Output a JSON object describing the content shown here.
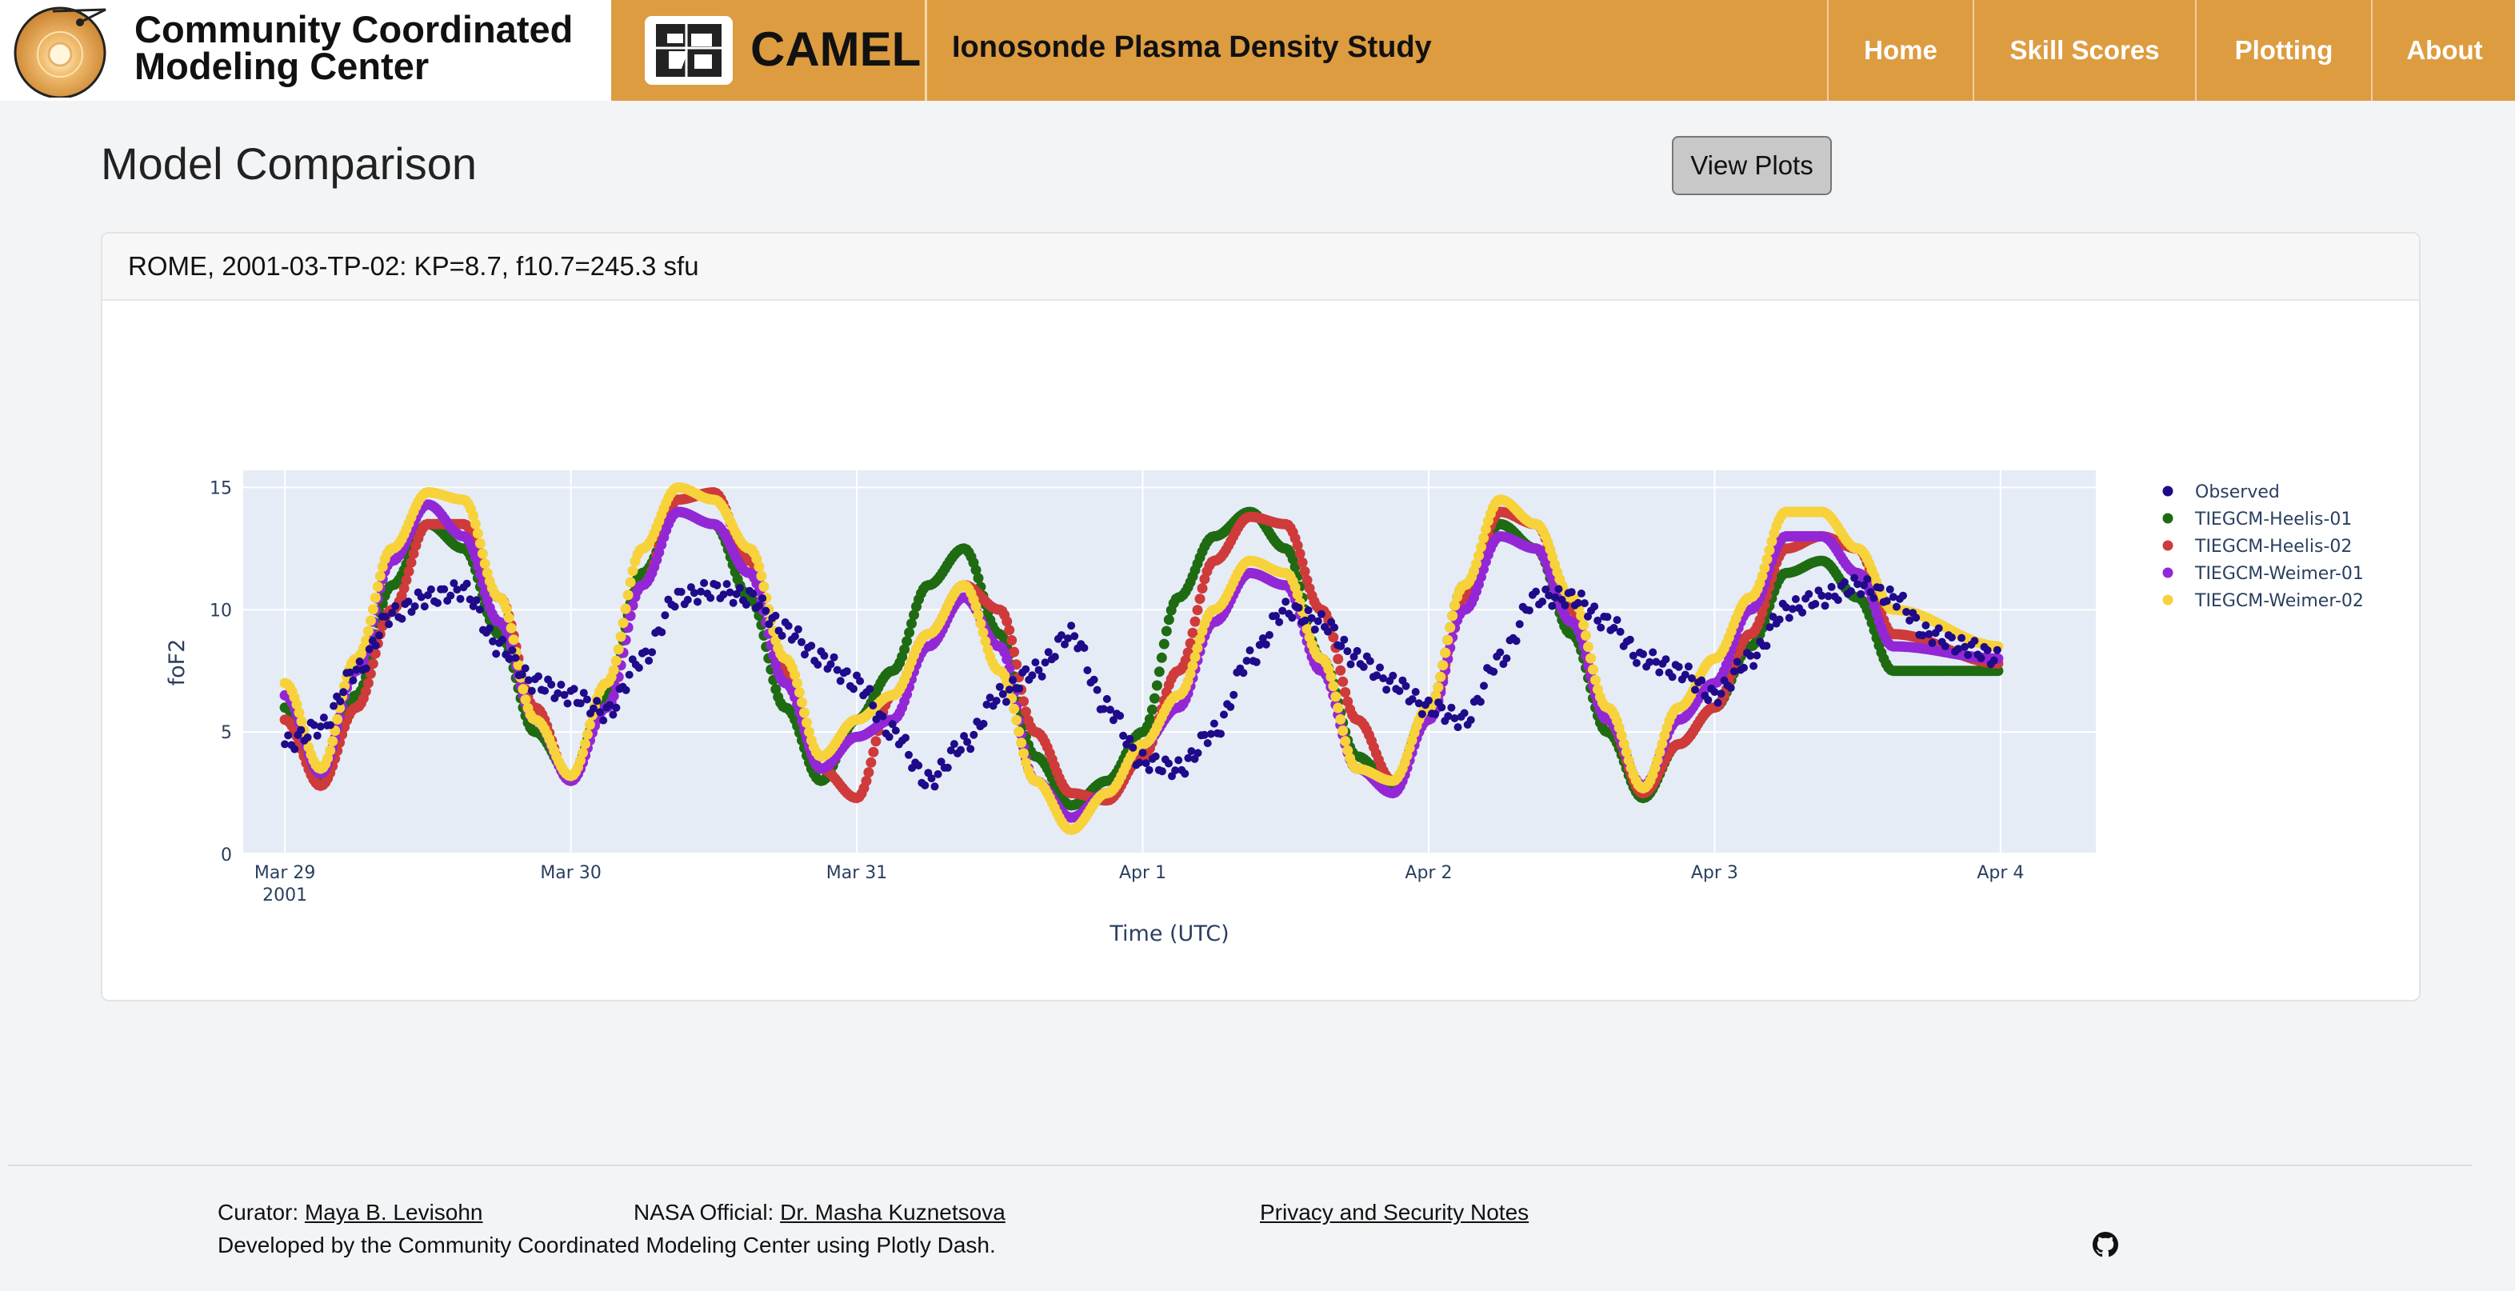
{
  "header": {
    "org_line1": "Community Coordinated",
    "org_line2": "Modeling Center",
    "app_name": "CAMEL",
    "study_title": "Ionosonde Plasma Density Study",
    "nav": [
      {
        "label": "Home"
      },
      {
        "label": "Skill Scores"
      },
      {
        "label": "Plotting"
      },
      {
        "label": "About"
      }
    ],
    "colors": {
      "bar": "#dd9c40"
    }
  },
  "main": {
    "title": "Model Comparison",
    "view_button": "View Plots",
    "card_title": "ROME, 2001-03-TP-02: KP=8.7, f10.7=245.3 sfu"
  },
  "chart_data": {
    "type": "scatter",
    "xlabel": "Time (UTC)",
    "ylabel": "foF2",
    "xlim": [
      "2001-03-28T20:30",
      "2001-04-04T08:00"
    ],
    "ylim": [
      0,
      15.7
    ],
    "yticks": [
      0,
      5,
      10,
      15
    ],
    "xticks": [
      {
        "date": "2001-03-29",
        "label": "Mar 29",
        "sublabel": "2001"
      },
      {
        "date": "2001-03-30",
        "label": "Mar 30"
      },
      {
        "date": "2001-03-31",
        "label": "Mar 31"
      },
      {
        "date": "2001-04-01",
        "label": "Apr 1"
      },
      {
        "date": "2001-04-02",
        "label": "Apr 2"
      },
      {
        "date": "2001-04-03",
        "label": "Apr 3"
      },
      {
        "date": "2001-04-04",
        "label": "Apr 4"
      }
    ],
    "legend_position": "right",
    "grid": true,
    "series": [
      {
        "name": "Observed",
        "color": "#1f0a8a",
        "points": [
          [
            "2001-03-29T00:00",
            4.5
          ],
          [
            "2001-03-29T03:00",
            5.2
          ],
          [
            "2001-03-29T06:00",
            7.5
          ],
          [
            "2001-03-29T09:00",
            9.8
          ],
          [
            "2001-03-29T12:00",
            10.5
          ],
          [
            "2001-03-29T15:00",
            10.8
          ],
          [
            "2001-03-29T18:00",
            8.5
          ],
          [
            "2001-03-29T21:00",
            7.0
          ],
          [
            "2001-03-30T00:00",
            6.5
          ],
          [
            "2001-03-30T03:00",
            5.8
          ],
          [
            "2001-03-30T06:00",
            8.0
          ],
          [
            "2001-03-30T09:00",
            10.5
          ],
          [
            "2001-03-30T12:00",
            10.8
          ],
          [
            "2001-03-30T15:00",
            10.5
          ],
          [
            "2001-03-30T18:00",
            9.2
          ],
          [
            "2001-03-30T21:00",
            8.0
          ],
          [
            "2001-03-31T00:00",
            7.0
          ],
          [
            "2001-03-31T03:00",
            5.0
          ],
          [
            "2001-03-31T06:00",
            3.0
          ],
          [
            "2001-03-31T09:00",
            4.5
          ],
          [
            "2001-03-31T12:00",
            6.5
          ],
          [
            "2001-03-31T15:00",
            7.5
          ],
          [
            "2001-03-31T18:00",
            9.0
          ],
          [
            "2001-03-31T21:00",
            6.0
          ],
          [
            "2001-04-01T00:00",
            3.8
          ],
          [
            "2001-04-01T03:00",
            3.5
          ],
          [
            "2001-04-01T06:00",
            5.0
          ],
          [
            "2001-04-01T09:00",
            8.0
          ],
          [
            "2001-04-01T12:00",
            10.0
          ],
          [
            "2001-04-01T15:00",
            9.5
          ],
          [
            "2001-04-01T18:00",
            8.0
          ],
          [
            "2001-04-01T21:00",
            7.0
          ],
          [
            "2001-04-02T00:00",
            6.0
          ],
          [
            "2001-04-02T03:00",
            5.5
          ],
          [
            "2001-04-02T06:00",
            8.0
          ],
          [
            "2001-04-02T09:00",
            10.5
          ],
          [
            "2001-04-02T12:00",
            10.5
          ],
          [
            "2001-04-02T15:00",
            9.5
          ],
          [
            "2001-04-02T18:00",
            8.0
          ],
          [
            "2001-04-02T21:00",
            7.5
          ],
          [
            "2001-04-03T00:00",
            6.5
          ],
          [
            "2001-04-03T03:00",
            8.0
          ],
          [
            "2001-04-03T06:00",
            10.0
          ],
          [
            "2001-04-03T09:00",
            10.5
          ],
          [
            "2001-04-03T12:00",
            11.0
          ],
          [
            "2001-04-03T15:00",
            10.5
          ],
          [
            "2001-04-03T18:00",
            9.0
          ],
          [
            "2001-04-03T21:00",
            8.5
          ],
          [
            "2001-04-04T00:00",
            8.0
          ]
        ]
      },
      {
        "name": "TIEGCM-Heelis-01",
        "color": "#1e6b12",
        "points": [
          [
            "2001-03-29T00:00",
            6.0
          ],
          [
            "2001-03-29T03:00",
            3.0
          ],
          [
            "2001-03-29T06:00",
            6.5
          ],
          [
            "2001-03-29T09:00",
            11.0
          ],
          [
            "2001-03-29T12:00",
            13.5
          ],
          [
            "2001-03-29T15:00",
            12.5
          ],
          [
            "2001-03-29T18:00",
            9.0
          ],
          [
            "2001-03-29T21:00",
            5.0
          ],
          [
            "2001-03-30T00:00",
            3.2
          ],
          [
            "2001-03-30T03:00",
            6.5
          ],
          [
            "2001-03-30T06:00",
            11.5
          ],
          [
            "2001-03-30T09:00",
            14.0
          ],
          [
            "2001-03-30T12:00",
            13.5
          ],
          [
            "2001-03-30T15:00",
            10.5
          ],
          [
            "2001-03-30T18:00",
            6.0
          ],
          [
            "2001-03-30T21:00",
            3.0
          ],
          [
            "2001-03-31T00:00",
            5.5
          ],
          [
            "2001-03-31T03:00",
            7.5
          ],
          [
            "2001-03-31T06:00",
            11.0
          ],
          [
            "2001-03-31T09:00",
            12.5
          ],
          [
            "2001-03-31T12:00",
            9.0
          ],
          [
            "2001-03-31T15:00",
            4.0
          ],
          [
            "2001-03-31T18:00",
            2.0
          ],
          [
            "2001-03-31T21:00",
            3.0
          ],
          [
            "2001-04-01T00:00",
            5.0
          ],
          [
            "2001-04-01T03:00",
            10.5
          ],
          [
            "2001-04-01T06:00",
            13.0
          ],
          [
            "2001-04-01T09:00",
            14.0
          ],
          [
            "2001-04-01T12:00",
            12.5
          ],
          [
            "2001-04-01T15:00",
            8.0
          ],
          [
            "2001-04-01T18:00",
            4.0
          ],
          [
            "2001-04-01T21:00",
            2.8
          ],
          [
            "2001-04-02T00:00",
            6.0
          ],
          [
            "2001-04-02T03:00",
            11.0
          ],
          [
            "2001-04-02T06:00",
            13.5
          ],
          [
            "2001-04-02T09:00",
            12.5
          ],
          [
            "2001-04-02T12:00",
            9.0
          ],
          [
            "2001-04-02T15:00",
            5.0
          ],
          [
            "2001-04-02T18:00",
            2.3
          ],
          [
            "2001-04-02T21:00",
            4.5
          ],
          [
            "2001-04-03T00:00",
            6.0
          ],
          [
            "2001-04-03T03:00",
            8.5
          ],
          [
            "2001-04-03T06:00",
            11.5
          ],
          [
            "2001-04-03T09:00",
            12.0
          ],
          [
            "2001-04-03T12:00",
            10.5
          ],
          [
            "2001-04-03T15:00",
            7.5
          ],
          [
            "2001-04-04T00:00",
            7.5
          ]
        ]
      },
      {
        "name": "TIEGCM-Heelis-02",
        "color": "#cf3a3a",
        "points": [
          [
            "2001-03-29T00:00",
            5.5
          ],
          [
            "2001-03-29T03:00",
            2.8
          ],
          [
            "2001-03-29T06:00",
            6.0
          ],
          [
            "2001-03-29T09:00",
            10.0
          ],
          [
            "2001-03-29T12:00",
            13.5
          ],
          [
            "2001-03-29T15:00",
            13.5
          ],
          [
            "2001-03-29T18:00",
            10.5
          ],
          [
            "2001-03-29T21:00",
            6.0
          ],
          [
            "2001-03-30T00:00",
            3.0
          ],
          [
            "2001-03-30T03:00",
            6.0
          ],
          [
            "2001-03-30T06:00",
            11.0
          ],
          [
            "2001-03-30T09:00",
            14.5
          ],
          [
            "2001-03-30T12:00",
            14.8
          ],
          [
            "2001-03-30T15:00",
            12.0
          ],
          [
            "2001-03-30T18:00",
            7.5
          ],
          [
            "2001-03-30T21:00",
            3.5
          ],
          [
            "2001-03-31T00:00",
            2.3
          ],
          [
            "2001-03-31T03:00",
            6.5
          ],
          [
            "2001-03-31T06:00",
            9.0
          ],
          [
            "2001-03-31T09:00",
            11.0
          ],
          [
            "2001-03-31T12:00",
            10.0
          ],
          [
            "2001-03-31T15:00",
            5.0
          ],
          [
            "2001-03-31T18:00",
            2.5
          ],
          [
            "2001-03-31T21:00",
            2.2
          ],
          [
            "2001-04-01T00:00",
            4.0
          ],
          [
            "2001-04-01T03:00",
            7.5
          ],
          [
            "2001-04-01T06:00",
            12.0
          ],
          [
            "2001-04-01T09:00",
            13.8
          ],
          [
            "2001-04-01T12:00",
            13.5
          ],
          [
            "2001-04-01T15:00",
            10.0
          ],
          [
            "2001-04-01T18:00",
            5.5
          ],
          [
            "2001-04-01T21:00",
            3.0
          ],
          [
            "2001-04-02T00:00",
            5.5
          ],
          [
            "2001-04-02T03:00",
            10.5
          ],
          [
            "2001-04-02T06:00",
            14.0
          ],
          [
            "2001-04-02T09:00",
            13.5
          ],
          [
            "2001-04-02T12:00",
            10.0
          ],
          [
            "2001-04-02T15:00",
            5.5
          ],
          [
            "2001-04-02T18:00",
            2.5
          ],
          [
            "2001-04-02T21:00",
            4.5
          ],
          [
            "2001-04-03T00:00",
            6.0
          ],
          [
            "2001-04-03T03:00",
            9.0
          ],
          [
            "2001-04-03T06:00",
            12.5
          ],
          [
            "2001-04-03T09:00",
            13.0
          ],
          [
            "2001-04-03T12:00",
            12.5
          ],
          [
            "2001-04-03T15:00",
            9.0
          ],
          [
            "2001-04-04T00:00",
            7.8
          ]
        ]
      },
      {
        "name": "TIEGCM-Weimer-01",
        "color": "#9327d6",
        "points": [
          [
            "2001-03-29T00:00",
            6.5
          ],
          [
            "2001-03-29T03:00",
            3.3
          ],
          [
            "2001-03-29T06:00",
            7.5
          ],
          [
            "2001-03-29T09:00",
            12.0
          ],
          [
            "2001-03-29T12:00",
            14.3
          ],
          [
            "2001-03-29T15:00",
            13.0
          ],
          [
            "2001-03-29T18:00",
            9.5
          ],
          [
            "2001-03-29T21:00",
            5.5
          ],
          [
            "2001-03-30T00:00",
            3.0
          ],
          [
            "2001-03-30T03:00",
            6.0
          ],
          [
            "2001-03-30T06:00",
            11.0
          ],
          [
            "2001-03-30T09:00",
            14.0
          ],
          [
            "2001-03-30T12:00",
            13.5
          ],
          [
            "2001-03-30T15:00",
            11.5
          ],
          [
            "2001-03-30T18:00",
            7.0
          ],
          [
            "2001-03-30T21:00",
            3.5
          ],
          [
            "2001-03-31T00:00",
            4.8
          ],
          [
            "2001-03-31T03:00",
            5.5
          ],
          [
            "2001-03-31T06:00",
            8.5
          ],
          [
            "2001-03-31T09:00",
            10.5
          ],
          [
            "2001-03-31T12:00",
            8.5
          ],
          [
            "2001-03-31T15:00",
            3.0
          ],
          [
            "2001-03-31T18:00",
            1.5
          ],
          [
            "2001-03-31T21:00",
            2.5
          ],
          [
            "2001-04-01T00:00",
            4.5
          ],
          [
            "2001-04-01T03:00",
            6.0
          ],
          [
            "2001-04-01T06:00",
            9.5
          ],
          [
            "2001-04-01T09:00",
            11.5
          ],
          [
            "2001-04-01T12:00",
            11.0
          ],
          [
            "2001-04-01T15:00",
            7.5
          ],
          [
            "2001-04-01T18:00",
            3.5
          ],
          [
            "2001-04-01T21:00",
            2.5
          ],
          [
            "2001-04-02T00:00",
            5.5
          ],
          [
            "2001-04-02T03:00",
            10.0
          ],
          [
            "2001-04-02T06:00",
            13.0
          ],
          [
            "2001-04-02T09:00",
            12.5
          ],
          [
            "2001-04-02T12:00",
            9.5
          ],
          [
            "2001-04-02T15:00",
            5.5
          ],
          [
            "2001-04-02T18:00",
            2.8
          ],
          [
            "2001-04-02T21:00",
            5.5
          ],
          [
            "2001-04-03T00:00",
            7.0
          ],
          [
            "2001-04-03T03:00",
            10.0
          ],
          [
            "2001-04-03T06:00",
            13.0
          ],
          [
            "2001-04-03T09:00",
            13.0
          ],
          [
            "2001-04-03T12:00",
            11.5
          ],
          [
            "2001-04-03T15:00",
            8.5
          ],
          [
            "2001-04-04T00:00",
            8.0
          ]
        ]
      },
      {
        "name": "TIEGCM-Weimer-02",
        "color": "#f7d23a",
        "points": [
          [
            "2001-03-29T00:00",
            7.0
          ],
          [
            "2001-03-29T03:00",
            3.5
          ],
          [
            "2001-03-29T06:00",
            8.0
          ],
          [
            "2001-03-29T09:00",
            12.5
          ],
          [
            "2001-03-29T12:00",
            14.8
          ],
          [
            "2001-03-29T15:00",
            14.5
          ],
          [
            "2001-03-29T18:00",
            10.5
          ],
          [
            "2001-03-29T21:00",
            5.5
          ],
          [
            "2001-03-30T00:00",
            3.2
          ],
          [
            "2001-03-30T03:00",
            7.0
          ],
          [
            "2001-03-30T06:00",
            12.5
          ],
          [
            "2001-03-30T09:00",
            15.0
          ],
          [
            "2001-03-30T12:00",
            14.5
          ],
          [
            "2001-03-30T15:00",
            12.5
          ],
          [
            "2001-03-30T18:00",
            8.0
          ],
          [
            "2001-03-30T21:00",
            4.0
          ],
          [
            "2001-03-31T00:00",
            5.5
          ],
          [
            "2001-03-31T03:00",
            6.5
          ],
          [
            "2001-03-31T06:00",
            9.0
          ],
          [
            "2001-03-31T09:00",
            11.0
          ],
          [
            "2001-03-31T12:00",
            7.5
          ],
          [
            "2001-03-31T15:00",
            3.0
          ],
          [
            "2001-03-31T18:00",
            1.0
          ],
          [
            "2001-03-31T21:00",
            2.5
          ],
          [
            "2001-04-01T00:00",
            4.5
          ],
          [
            "2001-04-01T03:00",
            6.5
          ],
          [
            "2001-04-01T06:00",
            10.0
          ],
          [
            "2001-04-01T09:00",
            12.0
          ],
          [
            "2001-04-01T12:00",
            11.5
          ],
          [
            "2001-04-01T15:00",
            8.0
          ],
          [
            "2001-04-01T18:00",
            3.5
          ],
          [
            "2001-04-01T21:00",
            3.0
          ],
          [
            "2001-04-02T00:00",
            6.0
          ],
          [
            "2001-04-02T03:00",
            11.0
          ],
          [
            "2001-04-02T06:00",
            14.5
          ],
          [
            "2001-04-02T09:00",
            13.5
          ],
          [
            "2001-04-02T12:00",
            10.5
          ],
          [
            "2001-04-02T15:00",
            6.0
          ],
          [
            "2001-04-02T18:00",
            2.7
          ],
          [
            "2001-04-02T21:00",
            6.0
          ],
          [
            "2001-04-03T00:00",
            8.0
          ],
          [
            "2001-04-03T03:00",
            10.5
          ],
          [
            "2001-04-03T06:00",
            14.0
          ],
          [
            "2001-04-03T09:00",
            14.0
          ],
          [
            "2001-04-03T12:00",
            12.5
          ],
          [
            "2001-04-03T15:00",
            10.0
          ],
          [
            "2001-04-04T00:00",
            8.5
          ]
        ]
      }
    ]
  },
  "footer": {
    "curator_label": "Curator:",
    "curator_name": "Maya B. Levisohn",
    "official_label": "NASA Official:",
    "official_name": "Dr. Masha Kuznetsova",
    "privacy": "Privacy and Security Notes",
    "developed_by": "Developed by the Community Coordinated Modeling Center using Plotly Dash.",
    "icon": "github-icon"
  }
}
